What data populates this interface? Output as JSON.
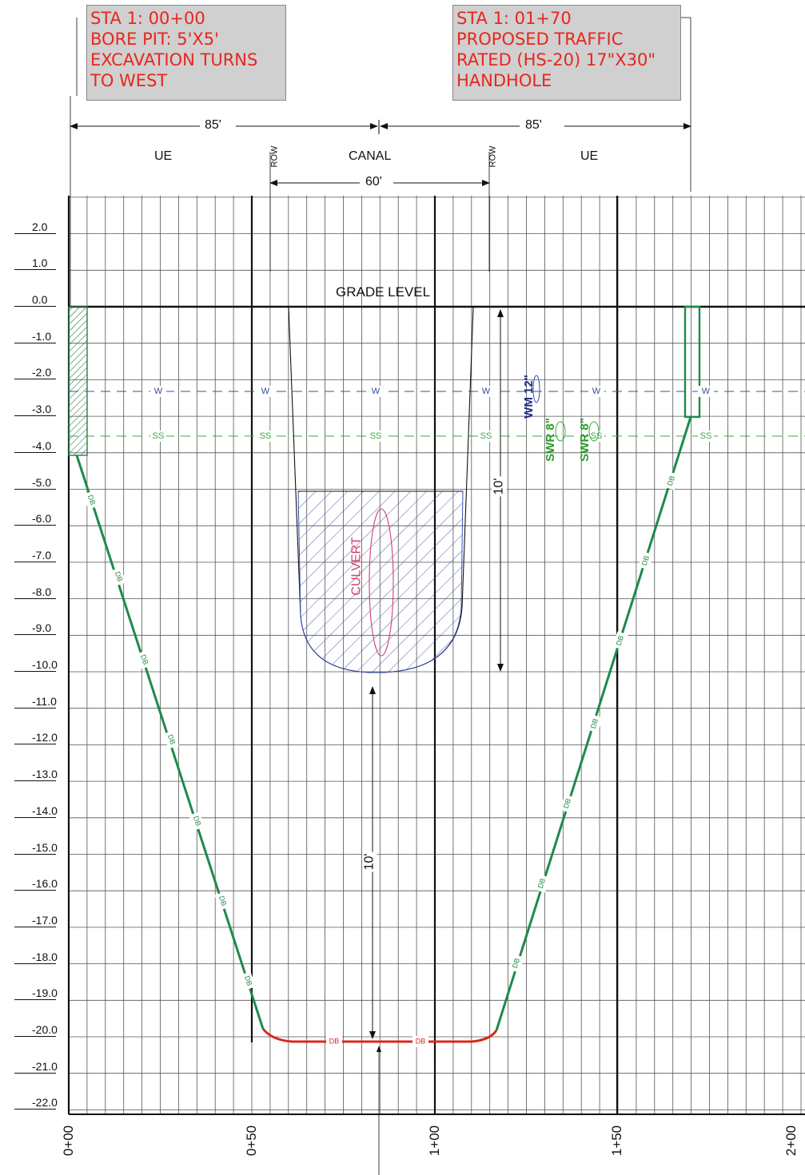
{
  "callouts": {
    "left": [
      "STA 1: 00+00",
      "BORE PIT: 5'X5'",
      "EXCAVATION TURNS",
      "TO WEST"
    ],
    "right": [
      "STA 1: 01+70",
      "PROPOSED TRAFFIC",
      "RATED (HS-20) 17\"X30\"",
      "HANDHOLE"
    ]
  },
  "dimensions": {
    "left_span": "85'",
    "right_span": "85'",
    "row_span": "60'",
    "canal_depth": "10'",
    "cover_depth": "10'"
  },
  "zones": {
    "left": "UE",
    "center": "CANAL",
    "right": "UE",
    "row_left": "ROW",
    "row_right": "ROW"
  },
  "grade_label": "GRADE LEVEL",
  "culvert_label": "CULVERT",
  "utilities": {
    "water_tag": "W",
    "sewer_tag": "SS",
    "bore_tag": "DB",
    "water_main": "WM 12\"",
    "sewer_1": "SWR 8\"",
    "sewer_2": "SWR 8\""
  },
  "elevations": [
    "2.0",
    "1.0",
    "0.0",
    "-1.0",
    "-2.0",
    "-3.0",
    "-4.0",
    "-5.0",
    "-6.0",
    "-7.0",
    "-8.0",
    "-9.0",
    "-10.0",
    "-11.0",
    "-12.0",
    "-13.0",
    "-14.0",
    "-15.0",
    "-16.0",
    "-17.0",
    "-18.0",
    "-19.0",
    "-20.0",
    "-21.0",
    "-22.0"
  ],
  "stations": [
    "0+00",
    "0+50",
    "1+00",
    "1+50",
    "2+00"
  ],
  "colors": {
    "bore_path": "#1e8a4a",
    "bore_bottom": "#d8281c",
    "water_line": "#3a4fa0",
    "sewer_line": "#3aa83a",
    "culvert": "#d0406a",
    "canal_hatch": "#3a4fb0",
    "callout_text": "#e8261c",
    "callout_bg": "#d0d0d0"
  }
}
